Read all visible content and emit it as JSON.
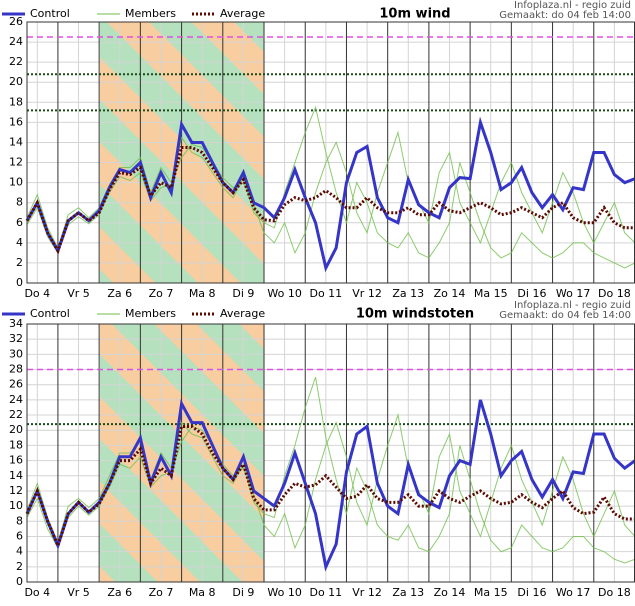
{
  "chart_data": [
    {
      "type": "line",
      "title": "10m wind",
      "source": "Infoplaza.nl - regio zuid",
      "created": "Gemaakt: do 04 feb 14:00",
      "x": [
        6,
        12,
        18,
        24,
        30,
        36,
        42,
        48,
        54,
        60,
        66,
        72,
        78,
        84,
        90,
        96,
        102,
        108,
        114,
        120,
        126,
        132,
        138,
        144,
        150,
        156,
        162,
        168,
        174,
        180,
        186,
        192,
        198,
        204,
        210,
        216,
        222,
        228,
        234,
        240,
        246,
        252,
        258,
        264,
        270,
        276,
        282,
        288,
        294,
        300,
        306,
        312,
        318,
        324,
        330,
        336,
        342,
        348,
        354,
        360
      ],
      "xlim": [
        6,
        360
      ],
      "xticks": [
        {
          "value": 12,
          "label": "Do 4"
        },
        {
          "value": 36,
          "label": "Vr 5"
        },
        {
          "value": 60,
          "label": "Za 6"
        },
        {
          "value": 84,
          "label": "Zo 7"
        },
        {
          "value": 108,
          "label": "Ma 8"
        },
        {
          "value": 132,
          "label": "Di 9"
        },
        {
          "value": 156,
          "label": "Wo 10"
        },
        {
          "value": 180,
          "label": "Do 11"
        },
        {
          "value": 204,
          "label": "Vr 12"
        },
        {
          "value": 228,
          "label": "Za 13"
        },
        {
          "value": 252,
          "label": "Zo 14"
        },
        {
          "value": 276,
          "label": "Ma 15"
        },
        {
          "value": 300,
          "label": "Di 16"
        },
        {
          "value": 324,
          "label": "Wo 17"
        },
        {
          "value": 348,
          "label": "Do 18"
        }
      ],
      "ylim": [
        0,
        26
      ],
      "yticks": [
        0,
        2,
        4,
        6,
        8,
        10,
        12,
        14,
        16,
        18,
        20,
        22,
        24,
        26
      ],
      "grid": true,
      "reference_lines": [
        {
          "value": 24.5,
          "color": "#e050e0",
          "style": "dashed"
        },
        {
          "value": 20.8,
          "color": "#1a4a1a",
          "style": "dotted"
        },
        {
          "value": 17.2,
          "color": "#1a4a1a",
          "style": "dotted"
        }
      ],
      "series": [
        {
          "name": "Control",
          "color": "#3535c8",
          "values": [
            6.2,
            8,
            5,
            3.2,
            6.2,
            7,
            6.2,
            7.2,
            9.5,
            11.3,
            11,
            12,
            8.5,
            11,
            9,
            15.8,
            14,
            14,
            12,
            10,
            9,
            11,
            8,
            7.5,
            6.5,
            8.5,
            11.3,
            8.5,
            6,
            1.5,
            3.5,
            10,
            13,
            13.6,
            8.5,
            6.5,
            6,
            10.3,
            7.8,
            7,
            6.5,
            9.5,
            10.5,
            10.4,
            16,
            13,
            9.3,
            10,
            11.5,
            9,
            7.5,
            8.8,
            7.3,
            9.5,
            9.3,
            13,
            13,
            10.8,
            10,
            10.4
          ]
        },
        {
          "name": "Average",
          "color": "#5a0a00",
          "style": "dotted",
          "values": [
            6.2,
            8,
            5,
            3.2,
            6.2,
            7,
            6.2,
            7,
            9.3,
            11,
            10.8,
            11.5,
            8.7,
            10,
            9.5,
            13.5,
            13.5,
            13,
            11.5,
            10,
            9,
            10.3,
            7.5,
            6.3,
            6.2,
            7.8,
            8.5,
            8.2,
            8.5,
            9.2,
            8.5,
            7.5,
            7.5,
            8.5,
            7.5,
            7,
            7,
            7.5,
            6.8,
            6.8,
            8,
            7.2,
            7,
            7.5,
            8,
            7.5,
            6.8,
            7,
            7.5,
            7,
            6.5,
            7.5,
            8,
            6.5,
            6,
            6,
            7.5,
            6,
            5.5,
            5.5
          ]
        }
      ],
      "members": {
        "name": "Members",
        "color": "#6fbf4a",
        "runs": [
          [
            6.5,
            8.8,
            5.5,
            3.5,
            6.8,
            7.5,
            6.5,
            7.5,
            9.8,
            11.5,
            11.5,
            12.5,
            9,
            11.5,
            10,
            14.5,
            13,
            12.5,
            11,
            9.5,
            8.5,
            10.5,
            7,
            6,
            5.5,
            9,
            12,
            15,
            17.5,
            13,
            9,
            6,
            10,
            8,
            5,
            4,
            3.5,
            5,
            3,
            2.5,
            4,
            6,
            12,
            9,
            6,
            3.5,
            2.5,
            3,
            5,
            4,
            3,
            2.5,
            3,
            4,
            4,
            3,
            2.5,
            2,
            1.5,
            2
          ],
          [
            5.8,
            7.5,
            4.6,
            3,
            5.8,
            6.6,
            5.9,
            6.8,
            9,
            10.6,
            10.2,
            11,
            8.2,
            9.5,
            9.8,
            12.5,
            13.8,
            13.5,
            12,
            10.5,
            9.5,
            10,
            7.8,
            5,
            4,
            6,
            3,
            5,
            9,
            12,
            14,
            11,
            7,
            5,
            9,
            12,
            15,
            10,
            8,
            6,
            11,
            13,
            8,
            6,
            4,
            7,
            10,
            12,
            9,
            7,
            5,
            8,
            11,
            9,
            6,
            4,
            6,
            8,
            5,
            4
          ]
        ]
      }
    },
    {
      "type": "line",
      "title": "10m windstoten",
      "source": "Infoplaza.nl - regio zuid",
      "created": "Gemaakt: do 04 feb 14:00",
      "x": [
        6,
        12,
        18,
        24,
        30,
        36,
        42,
        48,
        54,
        60,
        66,
        72,
        78,
        84,
        90,
        96,
        102,
        108,
        114,
        120,
        126,
        132,
        138,
        144,
        150,
        156,
        162,
        168,
        174,
        180,
        186,
        192,
        198,
        204,
        210,
        216,
        222,
        228,
        234,
        240,
        246,
        252,
        258,
        264,
        270,
        276,
        282,
        288,
        294,
        300,
        306,
        312,
        318,
        324,
        330,
        336,
        342,
        348,
        354,
        360
      ],
      "xlim": [
        6,
        360
      ],
      "xticks": [
        {
          "value": 12,
          "label": "Do 4"
        },
        {
          "value": 36,
          "label": "Vr 5"
        },
        {
          "value": 60,
          "label": "Za 6"
        },
        {
          "value": 84,
          "label": "Zo 7"
        },
        {
          "value": 108,
          "label": "Ma 8"
        },
        {
          "value": 132,
          "label": "Di 9"
        },
        {
          "value": 156,
          "label": "Wo 10"
        },
        {
          "value": 180,
          "label": "Do 11"
        },
        {
          "value": 204,
          "label": "Vr 12"
        },
        {
          "value": 228,
          "label": "Za 13"
        },
        {
          "value": 252,
          "label": "Zo 14"
        },
        {
          "value": 276,
          "label": "Ma 15"
        },
        {
          "value": 300,
          "label": "Di 16"
        },
        {
          "value": 324,
          "label": "Wo 17"
        },
        {
          "value": 348,
          "label": "Do 18"
        }
      ],
      "ylim": [
        0,
        34
      ],
      "yticks": [
        0,
        2,
        4,
        6,
        8,
        10,
        12,
        14,
        16,
        18,
        20,
        22,
        24,
        26,
        28,
        30,
        32,
        34
      ],
      "grid": true,
      "reference_lines": [
        {
          "value": 28,
          "color": "#e050e0",
          "style": "dashed"
        },
        {
          "value": 20.8,
          "color": "#1a4a1a",
          "style": "dotted"
        }
      ],
      "series": [
        {
          "name": "Control",
          "color": "#3535c8",
          "values": [
            9,
            12,
            8,
            4.8,
            9,
            10.5,
            9.2,
            10.5,
            13,
            16.5,
            16.5,
            19,
            13,
            16.5,
            14,
            23.5,
            21,
            21,
            18,
            15,
            13.5,
            16.5,
            12,
            11,
            10,
            13,
            17,
            13,
            9,
            2,
            5,
            14.5,
            19.5,
            20.5,
            13,
            10,
            9,
            15.5,
            11.5,
            10.5,
            9.8,
            14,
            16,
            15.5,
            24,
            19.5,
            14,
            16,
            17.2,
            13.5,
            11.2,
            13.5,
            11,
            14.5,
            14.3,
            19.5,
            19.5,
            16.3,
            15,
            16
          ]
        },
        {
          "name": "Average",
          "color": "#5a0a00",
          "style": "dotted",
          "values": [
            9,
            12,
            8,
            4.8,
            9,
            10.5,
            9.2,
            10.3,
            13,
            16,
            16,
            17.5,
            13,
            15,
            14,
            20.5,
            20.5,
            19.5,
            17,
            15,
            13.5,
            15.5,
            11,
            9.5,
            9.5,
            11.5,
            13,
            12.5,
            12.8,
            14,
            12.5,
            11,
            11.3,
            12.8,
            11,
            10.5,
            10.5,
            11.5,
            10,
            10,
            12,
            11,
            10.5,
            11.3,
            12,
            11,
            10.3,
            10.5,
            11.5,
            10.5,
            9.8,
            11,
            12,
            9.8,
            9,
            9.2,
            11.2,
            9,
            8.3,
            8.3
          ]
        }
      ],
      "members": {
        "name": "Members",
        "color": "#6fbf4a",
        "runs": [
          [
            9.5,
            13,
            8.5,
            5.2,
            10,
            11,
            9.8,
            11,
            14,
            17,
            17,
            18.5,
            13.5,
            17,
            15,
            21,
            19.5,
            19,
            16.5,
            14,
            13,
            15.5,
            10.5,
            9,
            8.5,
            14,
            18,
            23,
            27,
            19,
            13.5,
            9,
            15,
            12,
            7.5,
            6,
            5.5,
            7.5,
            4.5,
            4,
            6,
            9,
            18,
            13.5,
            9,
            5.5,
            4,
            4.5,
            7.5,
            6,
            4.5,
            4,
            4.5,
            6,
            6,
            4.5,
            4,
            3,
            2.5,
            3
          ],
          [
            8.5,
            11,
            7,
            4.5,
            8.5,
            10,
            8.8,
            10,
            12.5,
            15.5,
            15,
            16.5,
            12.5,
            14,
            14.5,
            18.5,
            20.5,
            20,
            18,
            15.5,
            14,
            15,
            11.5,
            7.5,
            6,
            9,
            4.5,
            7.5,
            13.5,
            18,
            21,
            16.5,
            10.5,
            7.5,
            13.5,
            18,
            22,
            15,
            12,
            9,
            16.5,
            19.5,
            12,
            9,
            6,
            10.5,
            15,
            18,
            13.5,
            10.5,
            7.5,
            12,
            16.5,
            13.5,
            9,
            6,
            9,
            12,
            7.5,
            6
          ]
        ]
      }
    }
  ]
}
